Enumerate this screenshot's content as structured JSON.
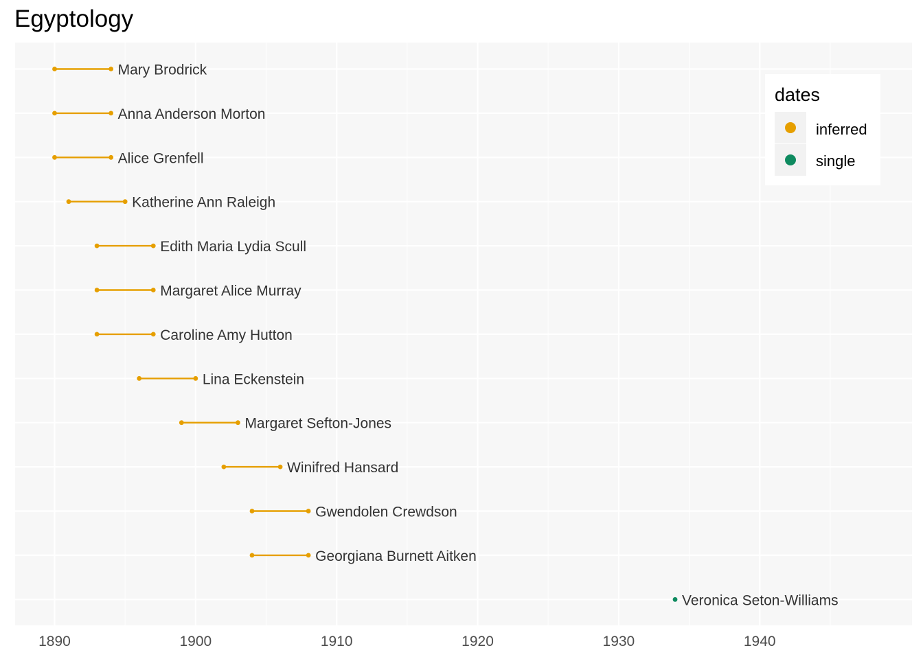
{
  "chart_data": {
    "type": "dumbbell",
    "title": "Egyptology",
    "xlabel": "",
    "ylabel": "",
    "xlim": [
      1887.2,
      1950.8
    ],
    "x_ticks": [
      1890,
      1900,
      1910,
      1920,
      1930,
      1940
    ],
    "grid": true,
    "legend": {
      "title": "dates",
      "placement": "top-right",
      "entries": [
        {
          "label": "inferred",
          "color": "#E69F00"
        },
        {
          "label": "single",
          "color": "#0E8A5F"
        }
      ]
    },
    "rows": [
      {
        "name": "Mary Brodrick",
        "start": 1890,
        "end": 1894,
        "dates": "inferred"
      },
      {
        "name": "Anna Anderson Morton",
        "start": 1890,
        "end": 1894,
        "dates": "inferred"
      },
      {
        "name": "Alice Grenfell",
        "start": 1890,
        "end": 1894,
        "dates": "inferred"
      },
      {
        "name": "Katherine Ann Raleigh",
        "start": 1891,
        "end": 1895,
        "dates": "inferred"
      },
      {
        "name": "Edith Maria Lydia Scull",
        "start": 1893,
        "end": 1897,
        "dates": "inferred"
      },
      {
        "name": "Margaret Alice Murray",
        "start": 1893,
        "end": 1897,
        "dates": "inferred"
      },
      {
        "name": "Caroline Amy Hutton",
        "start": 1893,
        "end": 1897,
        "dates": "inferred"
      },
      {
        "name": "Lina Eckenstein",
        "start": 1896,
        "end": 1900,
        "dates": "inferred"
      },
      {
        "name": "Margaret Sefton-Jones",
        "start": 1899,
        "end": 1903,
        "dates": "inferred"
      },
      {
        "name": "Winifred Hansard",
        "start": 1902,
        "end": 1906,
        "dates": "inferred"
      },
      {
        "name": "Gwendolen Crewdson",
        "start": 1904,
        "end": 1908,
        "dates": "inferred"
      },
      {
        "name": "Georgiana Burnett Aitken",
        "start": 1904,
        "end": 1908,
        "dates": "inferred"
      },
      {
        "name": "Veronica Seton-Williams",
        "start": 1934,
        "end": 1934,
        "dates": "single"
      }
    ]
  }
}
